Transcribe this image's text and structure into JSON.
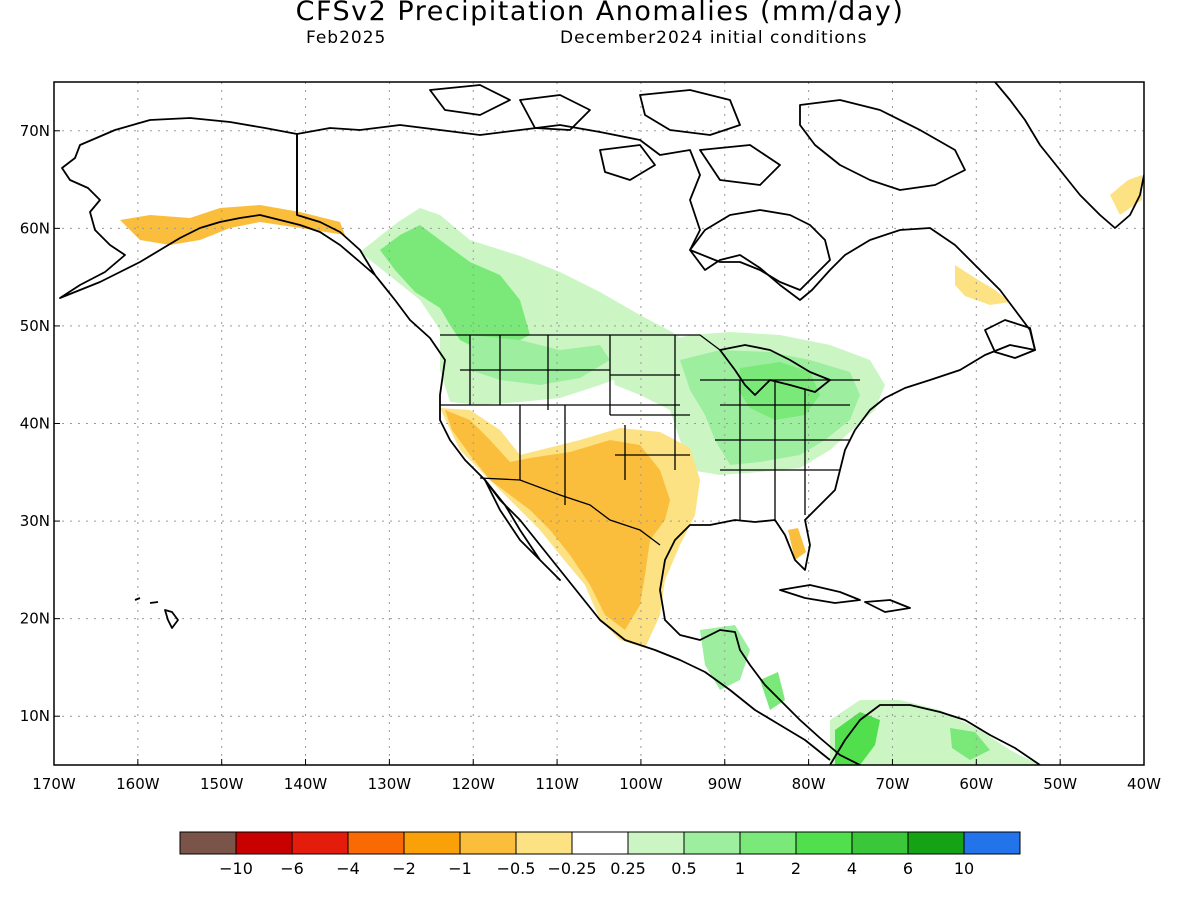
{
  "title": "CFSv2 Precipitation Anomalies (mm/day)",
  "subtitle_left": "Feb2025",
  "subtitle_right": "December2024 initial conditions",
  "map": {
    "lon_range": [
      -170,
      -40
    ],
    "lat_range": [
      5,
      75
    ],
    "lat_ticks": [
      {
        "value": 70,
        "label": "70N"
      },
      {
        "value": 60,
        "label": "60N"
      },
      {
        "value": 50,
        "label": "50N"
      },
      {
        "value": 40,
        "label": "40N"
      },
      {
        "value": 30,
        "label": "30N"
      },
      {
        "value": 20,
        "label": "20N"
      },
      {
        "value": 10,
        "label": "10N"
      }
    ],
    "lon_ticks": [
      {
        "value": -170,
        "label": "170W"
      },
      {
        "value": -160,
        "label": "160W"
      },
      {
        "value": -150,
        "label": "150W"
      },
      {
        "value": -140,
        "label": "140W"
      },
      {
        "value": -130,
        "label": "130W"
      },
      {
        "value": -120,
        "label": "120W"
      },
      {
        "value": -110,
        "label": "110W"
      },
      {
        "value": -100,
        "label": "100W"
      },
      {
        "value": -90,
        "label": "90W"
      },
      {
        "value": -80,
        "label": "80W"
      },
      {
        "value": -70,
        "label": "70W"
      },
      {
        "value": -60,
        "label": "60W"
      },
      {
        "value": -50,
        "label": "50W"
      },
      {
        "value": -40,
        "label": "40W"
      }
    ],
    "grid": "dotted",
    "land_outline_color": "#000000"
  },
  "colorbar": {
    "colors": [
      "#7a5448",
      "#c80000",
      "#e41c0c",
      "#fa6a04",
      "#faa10a",
      "#fbbe3c",
      "#fde283",
      "#ffffff",
      "#cbf6c4",
      "#9eeea0",
      "#7ae97a",
      "#52df4e",
      "#3ac83a",
      "#15a315",
      "#2373eb"
    ],
    "labels": [
      "-10",
      "-6",
      "-4",
      "-2",
      "-1",
      "-0.5",
      "-0.25",
      "0.25",
      "0.5",
      "1",
      "2",
      "4",
      "6",
      "10"
    ]
  },
  "anomaly_regions": [
    {
      "region": "Pacific Northwest / western Canada",
      "level": "0.5 to 2",
      "color": "#7ae97a"
    },
    {
      "region": "Ohio Valley / Great Lakes / Northeast US",
      "level": "0.5 to 1",
      "color": "#9eeea0"
    },
    {
      "region": "Southwestern US / Texas / Mexico",
      "level": "-1 to -0.5",
      "color": "#fbbe3c"
    },
    {
      "region": "Southern Alaska coast",
      "level": "-1 to -0.25",
      "color": "#fbbe3c"
    },
    {
      "region": "Northern South America",
      "level": "0.5 to 4",
      "color": "#52df4e"
    }
  ]
}
